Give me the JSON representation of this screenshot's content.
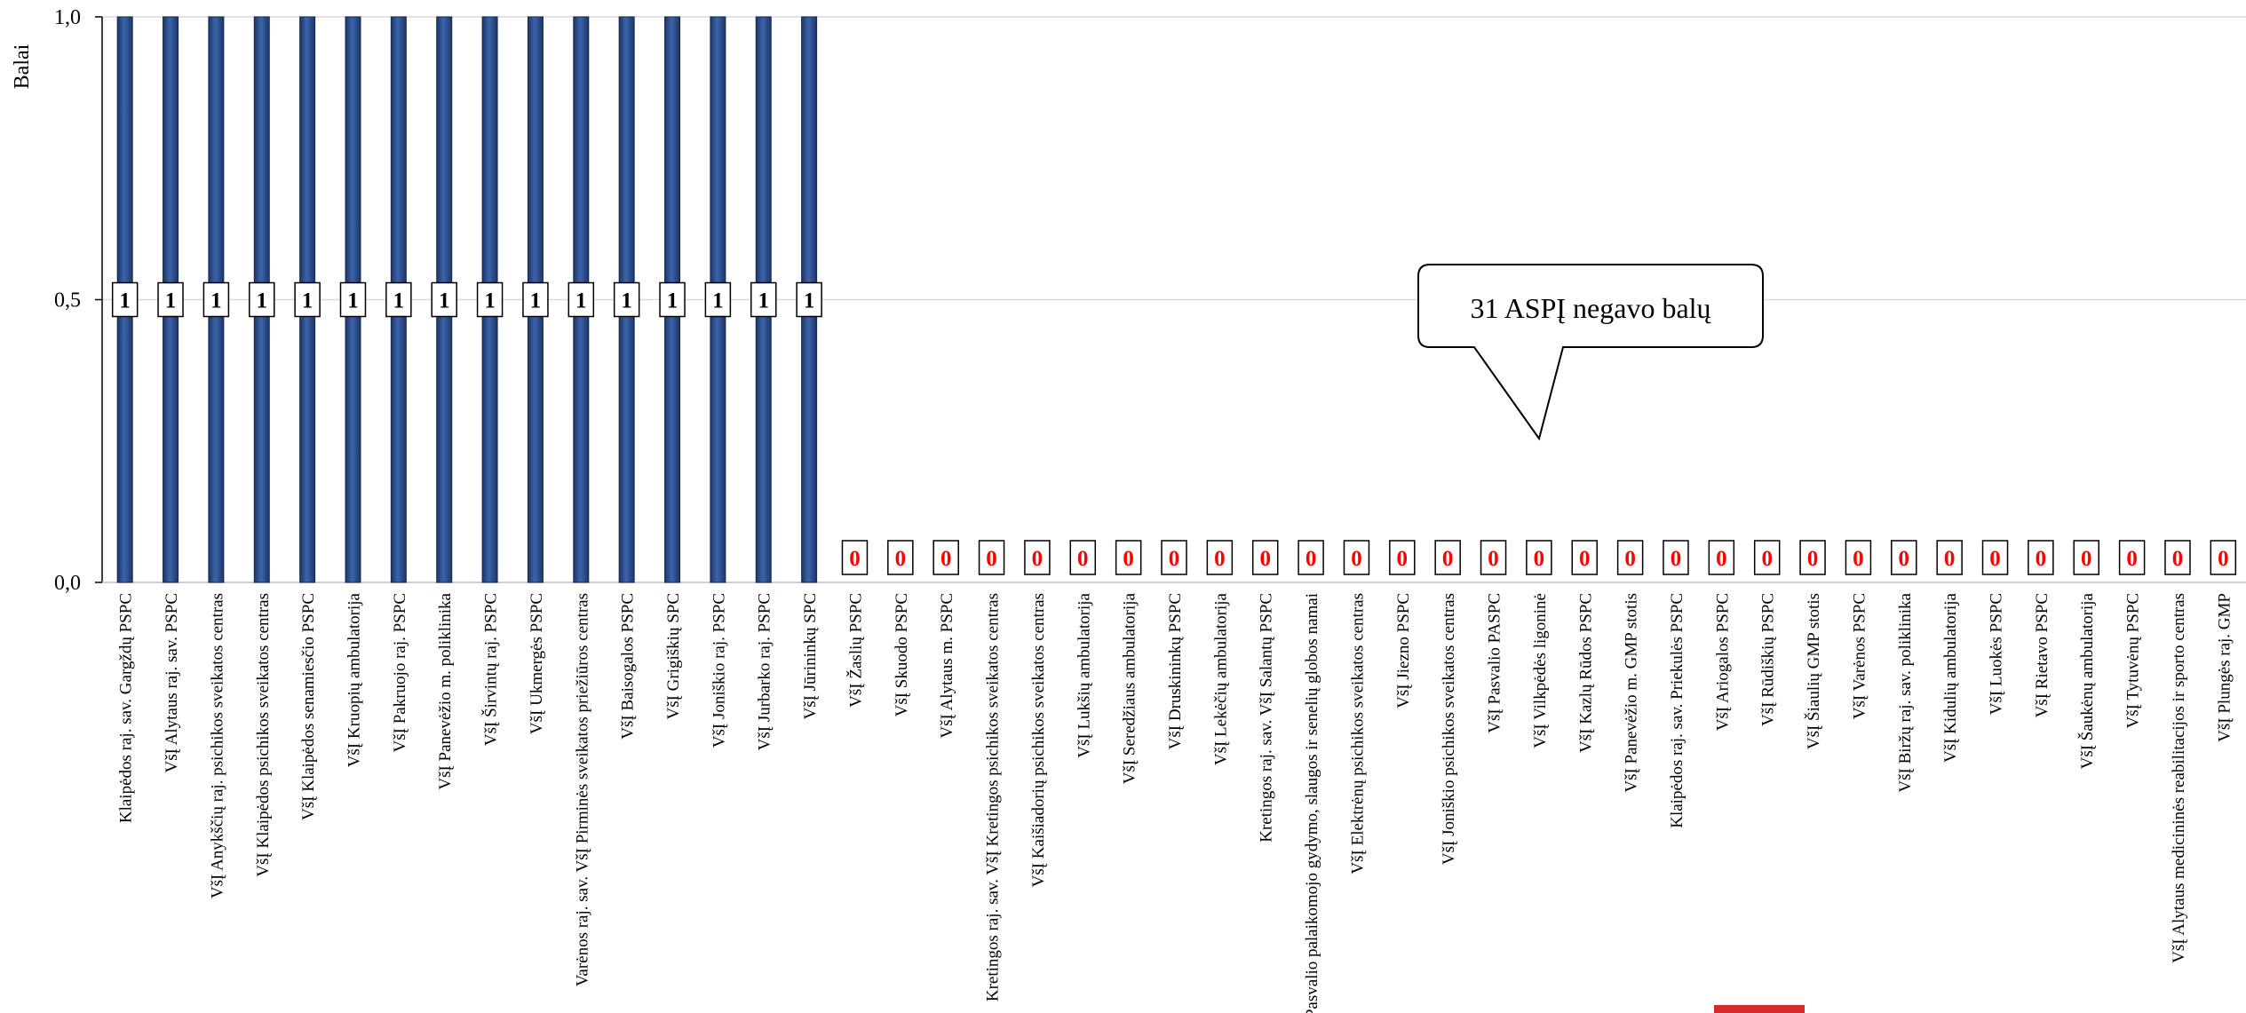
{
  "chart_data": {
    "type": "bar",
    "ylabel": "Balai",
    "ylim": [
      0,
      1
    ],
    "yticks": [
      "0,0",
      "0,5",
      "1,0"
    ],
    "grid": true,
    "bar_color": "#2b4f8f",
    "zero_label_color": "#ff0000",
    "categories": [
      "Klaipėdos raj. sav. Gargždų PSPC",
      "VšĮ Alytaus raj. sav. PSPC",
      "VšĮ Anykščių raj. psichikos sveikatos centras",
      "VšĮ Klaipėdos psichikos sveikatos centras",
      "VšĮ Klaipėdos senamiesčio PSPC",
      "VšĮ Kruopių ambulatorija",
      "VšĮ Pakruojo raj. PSPC",
      "VšĮ Panevėžio m. poliklinika",
      "VšĮ Širvintų raj. PSPC",
      "VšĮ Ukmergės PSPC",
      "Varėnos raj. sav. VšĮ Pirminės sveikatos priežiūros centras",
      "VšĮ Baisogalos PSPC",
      "VšĮ Grigiškių SPC",
      "VšĮ Joniškio raj. PSPC",
      "VšĮ Jurbarko raj. PSPC",
      "VšĮ Jūrininkų SPC",
      "VšĮ Žaslių PSPC",
      "VšĮ Skuodo PSPC",
      "VšĮ Alytaus m. PSPC",
      "Kretingos raj. sav. VšĮ Kretingos psichikos sveikatos centras",
      "VšĮ Kaišiadorių psichikos sveikatos centras",
      "VšĮ Lukšių ambulatorija",
      "VšĮ Seredžiaus ambulatorija",
      "VšĮ Druskininkų PSPC",
      "VšĮ Lekėčių ambulatorija",
      "Kretingos raj. sav. VšĮ Salantų PSPC",
      "VšĮ Pasvalio palaikomojo gydymo, slaugos ir senelių globos namai",
      "VšĮ Elektrėnų psichikos sveikatos centras",
      "VšĮ Jiezno PSPC",
      "VšĮ Joniškio psichikos sveikatos centras",
      "VšĮ Pasvalio PASPC",
      "VšĮ Vilkpėdės ligoninė",
      "VšĮ Kazlų Rūdos PSPC",
      "VšĮ Panevėžio m. GMP stotis",
      "Klaipėdos raj. sav. Priekulės PSPC",
      "VšĮ Ariogalos PSPC",
      "VšĮ Rūdiškių PSPC",
      "VšĮ Šiaulių GMP stotis",
      "VšĮ Varėnos PSPC",
      "VšĮ Biržų raj. sav. poliklinika",
      "VšĮ Kidulių ambulatorija",
      "VšĮ Luokės PSPC",
      "VšĮ Rietavo PSPC",
      "VšĮ Šaukėnų ambulatorija",
      "VšĮ Tytuvėnų PSPC",
      "VšĮ Alytaus medicininės reabilitacijos ir sporto centras",
      "VšĮ Plungės raj. GMP"
    ],
    "values": [
      1,
      1,
      1,
      1,
      1,
      1,
      1,
      1,
      1,
      1,
      1,
      1,
      1,
      1,
      1,
      1,
      0,
      0,
      0,
      0,
      0,
      0,
      0,
      0,
      0,
      0,
      0,
      0,
      0,
      0,
      0,
      0,
      0,
      0,
      0,
      0,
      0,
      0,
      0,
      0,
      0,
      0,
      0,
      0,
      0,
      0,
      0
    ],
    "data_labels": [
      "1",
      "1",
      "1",
      "1",
      "1",
      "1",
      "1",
      "1",
      "1",
      "1",
      "1",
      "1",
      "1",
      "1",
      "1",
      "1",
      "0",
      "0",
      "0",
      "0",
      "0",
      "0",
      "0",
      "0",
      "0",
      "0",
      "0",
      "0",
      "0",
      "0",
      "0",
      "0",
      "0",
      "0",
      "0",
      "0",
      "0",
      "0",
      "0",
      "0",
      "0",
      "0",
      "0",
      "0",
      "0",
      "0",
      "0"
    ]
  },
  "callout": {
    "text": "31 ASPĮ negavo balų"
  }
}
